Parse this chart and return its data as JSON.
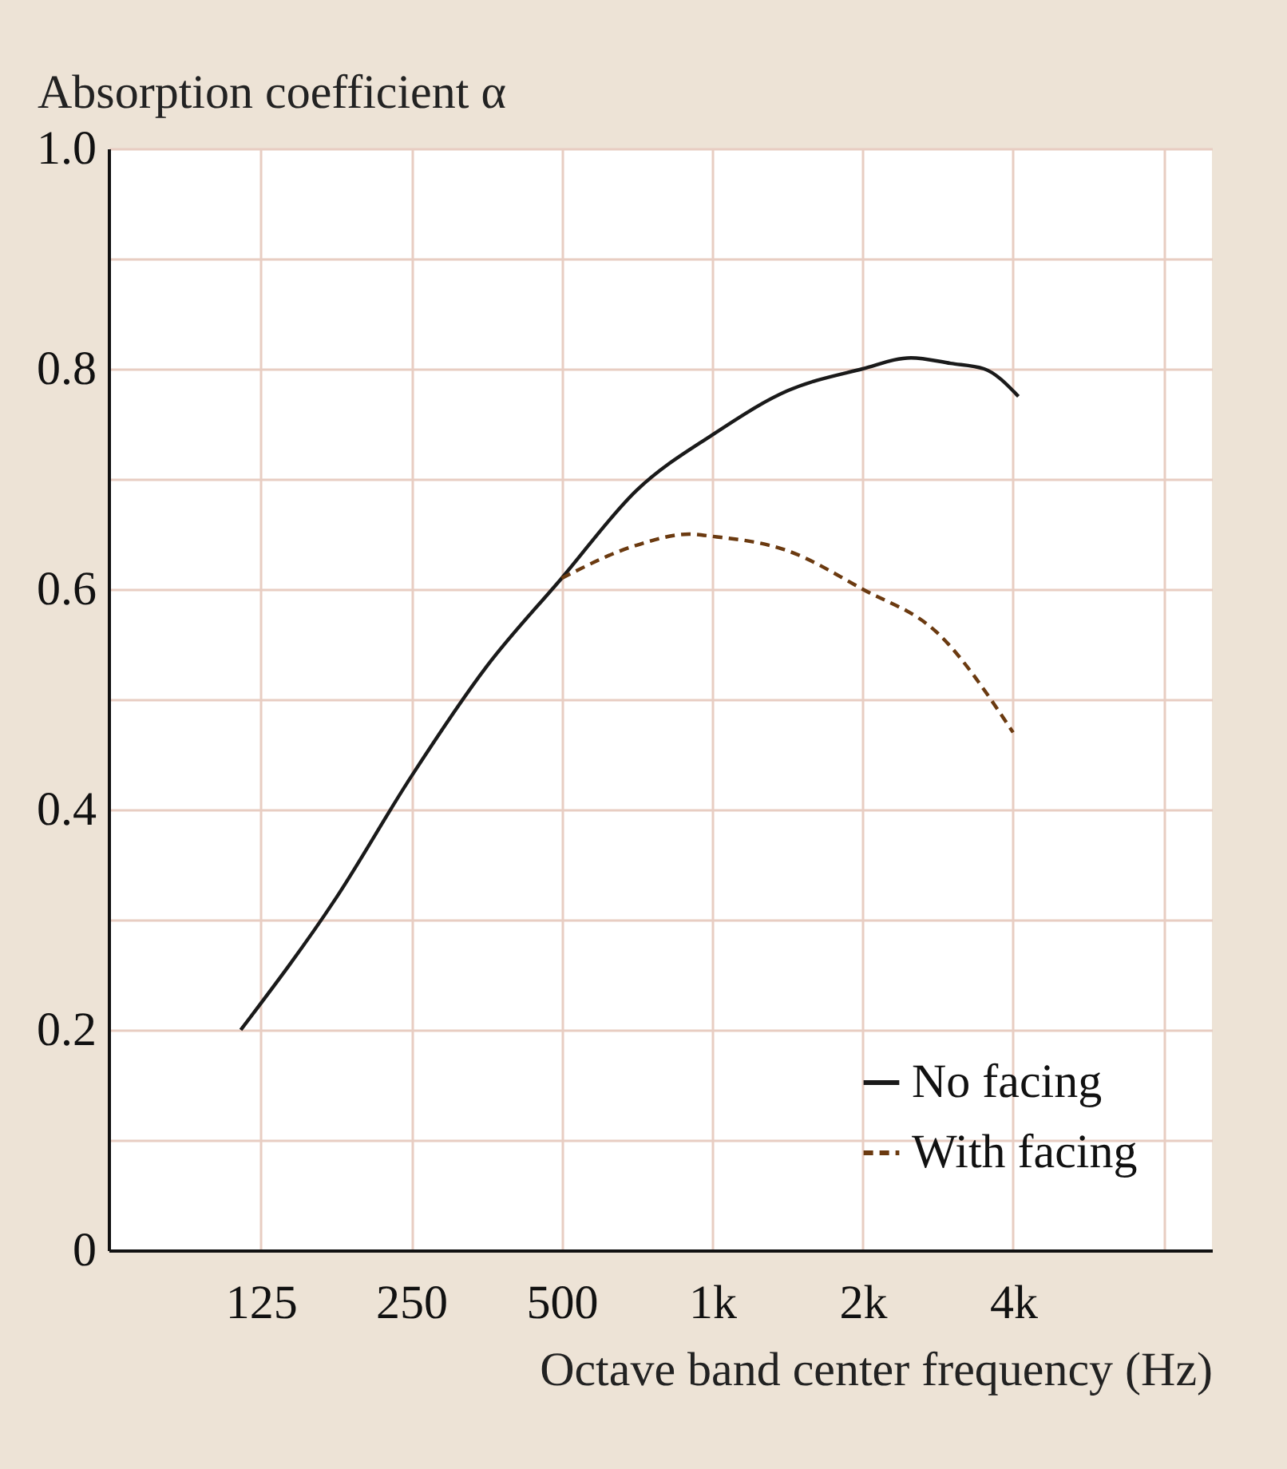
{
  "chart_data": {
    "type": "line",
    "xlabel": "Octave band center frequency (Hz)",
    "ylabel": "Absorption coefficient α",
    "log": "x",
    "grid": true,
    "legend": "bottom right",
    "xlim": [
      62,
      10000
    ],
    "xticks": [
      125,
      250,
      500,
      {
        "value": 1000,
        "label": "1k"
      },
      {
        "value": 2000,
        "label": "2k"
      },
      {
        "value": 4000,
        "label": "4k"
      },
      {
        "value": 8000,
        "label": null
      }
    ],
    "ylim": [
      0,
      1
    ],
    "yticks": [
      0,
      {
        "value": 0.1,
        "label": null
      },
      0.2,
      {
        "value": 0.3,
        "label": null
      },
      0.4,
      {
        "value": 0.5,
        "label": null
      },
      0.6,
      {
        "value": 0.7,
        "label": null
      },
      0.8,
      {
        "value": 0.9,
        "label": null
      },
      {
        "value": 1,
        "label": "1.0"
      }
    ],
    "series": [
      {
        "name": "No facing",
        "color": "#1a1a1a",
        "line_style": "solid",
        "x": [
          114,
          177,
          250,
          354,
          500,
          707,
          1000,
          1414,
          2000,
          2500,
          3000,
          3500,
          4100
        ],
        "values": [
          0.2,
          0.32,
          0.43,
          0.53,
          0.61,
          0.69,
          0.74,
          0.78,
          0.8,
          0.81,
          0.805,
          0.8,
          0.775
        ]
      },
      {
        "name": "With facing",
        "color": "#6b3a10",
        "line_style": "dashed",
        "x": [
          500,
          707,
          900,
          1000,
          1414,
          2000,
          2828,
          4000
        ],
        "values": [
          0.61,
          0.64,
          0.65,
          0.648,
          0.635,
          0.6,
          0.56,
          0.47
        ]
      }
    ]
  }
}
